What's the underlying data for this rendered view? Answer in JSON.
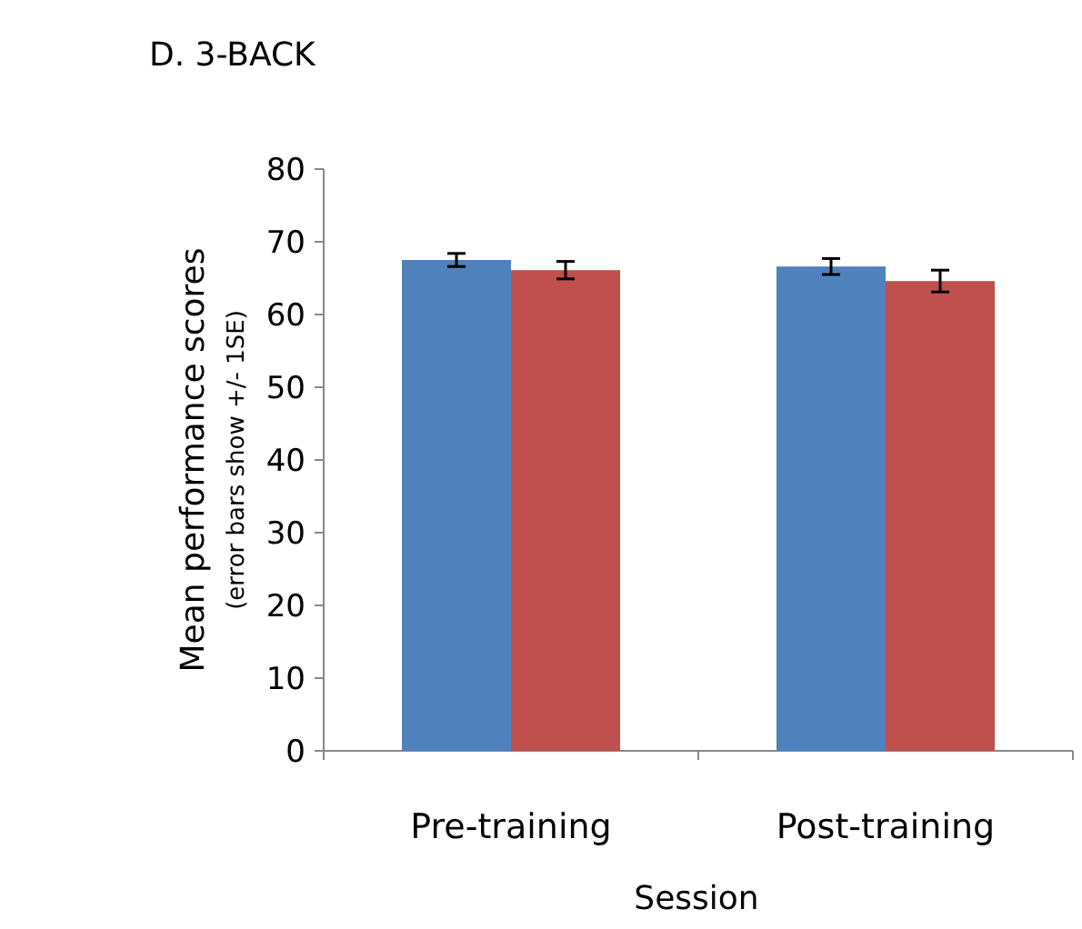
{
  "chart_data": {
    "type": "bar",
    "title": "D. 3-BACK",
    "xlabel": "Session",
    "ylabel": "Mean performance scores",
    "subtitle": "(error bars show +/- 1SE)",
    "categories": [
      "Pre-training",
      "Post-training"
    ],
    "series": [
      {
        "color": "#4f81bd",
        "values": [
          67.5,
          66.6
        ],
        "errors": [
          0.9,
          1.1
        ]
      },
      {
        "color": "#c0504d",
        "values": [
          66.1,
          64.6
        ],
        "errors": [
          1.2,
          1.5
        ]
      }
    ],
    "ylim": [
      0,
      80
    ],
    "yticks": [
      0,
      10,
      20,
      30,
      40,
      50,
      60,
      70,
      80
    ],
    "grid": false
  }
}
